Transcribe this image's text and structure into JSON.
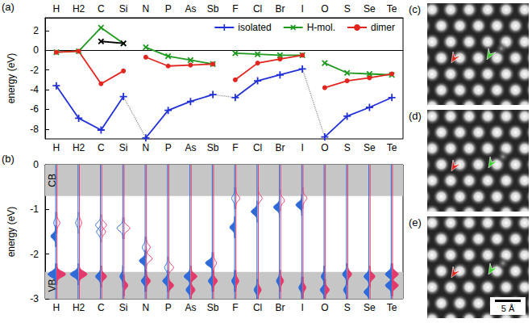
{
  "chart_data": [
    {
      "panel": "(a)",
      "type": "line",
      "ylabel": "energy (eV)",
      "categories": [
        [
          "H",
          "H2",
          "C",
          "Si"
        ],
        [
          "N",
          "P",
          "As",
          "Sb"
        ],
        [
          "F",
          "Cl",
          "Br",
          "I"
        ],
        [
          "O",
          "S",
          "Se",
          "Te"
        ]
      ],
      "ylim": [
        -9,
        3.3
      ],
      "yticks": [
        2,
        0,
        -2,
        -4,
        -6,
        -8
      ],
      "grid": false,
      "legend": "upper right",
      "series": [
        {
          "name": "isolated",
          "color": "#2230d8",
          "marker": "plus",
          "line_style": "dotted_between_groups",
          "values": [
            [
              -3.6,
              -6.9,
              -8.1,
              -4.7
            ],
            [
              -8.9,
              -6.1,
              -5.2,
              -4.5
            ],
            [
              -4.8,
              -3.1,
              -2.5,
              -1.9
            ],
            [
              -8.8,
              -6.7,
              -5.8,
              -4.8
            ]
          ]
        },
        {
          "name": "H-mol.",
          "color": "#1f9a1f",
          "marker": "cross",
          "line_style": "solid",
          "values": [
            [
              -0.2,
              -0.1,
              2.3,
              0.7
            ],
            [
              0.3,
              -0.6,
              -1.0,
              -1.4
            ],
            [
              -0.3,
              -0.4,
              -0.5,
              -0.5
            ],
            [
              -1.3,
              -2.3,
              -2.4,
              -2.5
            ]
          ]
        },
        {
          "name": "dimer",
          "color": "#e2261f",
          "marker": "circle",
          "line_style": "solid",
          "values": [
            [
              -0.2,
              -0.1,
              -3.4,
              -2.1
            ],
            [
              -0.7,
              -1.6,
              -1.5,
              -1.4
            ],
            [
              -3.0,
              -1.3,
              -0.9,
              -0.5
            ],
            [
              -3.8,
              -3.1,
              -2.8,
              -2.4
            ]
          ]
        },
        {
          "color": "#000000",
          "marker": "cross",
          "line_style": "solid",
          "values": [
            [
              null,
              null,
              0.9,
              0.7
            ],
            [
              null,
              null,
              null,
              null
            ],
            [
              null,
              null,
              null,
              null
            ],
            [
              null,
              null,
              null,
              null
            ]
          ]
        }
      ]
    },
    {
      "panel": "(b)",
      "type": "density",
      "ylabel": "energy (eV)",
      "categories": [
        "H",
        "H2",
        "C",
        "Si",
        "N",
        "P",
        "As",
        "Sb",
        "F",
        "Cl",
        "Br",
        "I",
        "O",
        "S",
        "Se",
        "Te"
      ],
      "ylim": [
        -3,
        0
      ],
      "yticks": [
        0,
        -1,
        -2,
        -3
      ],
      "grid": false,
      "bands": [
        {
          "label": "CB",
          "from": -0.7,
          "to": 0
        },
        {
          "label": "VB",
          "from": -3,
          "to": -2.4
        }
      ],
      "series": [
        {
          "color": "#2f6ad8",
          "values": [
            [
              [
                -1.6,
                0.5,
                true
              ],
              [
                -1.3,
                0.2,
                false
              ],
              [
                -2.45,
                0.8,
                true
              ]
            ],
            [
              [
                -1.3,
                0.25,
                false
              ],
              [
                -2.45,
                0.8,
                true
              ]
            ],
            [
              [
                -1.35,
                0.5,
                false
              ],
              [
                -1.5,
                0.4,
                false
              ],
              [
                -2.5,
                0.5,
                true
              ]
            ],
            [
              [
                -1.42,
                0.6,
                false
              ],
              [
                -2.5,
                0.3,
                true
              ]
            ],
            [
              [
                -1.85,
                0.3,
                false
              ],
              [
                -2.15,
                0.6,
                true
              ],
              [
                -2.6,
                0.4,
                true
              ]
            ],
            [
              [
                -2.3,
                0.3,
                false
              ],
              [
                -2.6,
                0.5,
                true
              ]
            ],
            [
              [
                -2.5,
                0.6,
                true
              ],
              [
                -2.8,
                0.4,
                true
              ]
            ],
            [
              [
                -2.2,
                0.7,
                true
              ],
              [
                -2.6,
                0.4,
                true
              ]
            ],
            [
              [
                -1.4,
                0.5,
                true
              ],
              [
                -0.75,
                0.3,
                false
              ],
              [
                -2.6,
                0.3,
                true
              ]
            ],
            [
              [
                -1.05,
                0.6,
                true
              ],
              [
                -2.8,
                0.3,
                true
              ]
            ],
            [
              [
                -0.95,
                0.6,
                true
              ],
              [
                -2.6,
                0.3,
                true
              ]
            ],
            [
              [
                -0.9,
                0.6,
                true
              ],
              [
                -2.75,
                0.3,
                true
              ]
            ],
            [
              [
                -2.5,
                0.3,
                true
              ],
              [
                -2.8,
                0.4,
                true
              ]
            ],
            [
              [
                -2.45,
                0.4,
                true
              ],
              [
                -2.8,
                0.3,
                true
              ]
            ],
            [
              [
                -2.5,
                0.5,
                true
              ],
              [
                -2.85,
                0.5,
                true
              ]
            ],
            [
              [
                -2.45,
                0.6,
                true
              ],
              [
                -2.7,
                0.6,
                true
              ]
            ]
          ]
        },
        {
          "color": "#e33a6c",
          "values": [
            [
              [
                -1.3,
                0.3,
                false
              ],
              [
                -2.45,
                0.9,
                true
              ]
            ],
            [
              [
                -1.3,
                0.25,
                false
              ],
              [
                -2.45,
                0.8,
                true
              ]
            ],
            [
              [
                -1.35,
                0.5,
                false
              ],
              [
                -1.5,
                0.4,
                false
              ],
              [
                -2.5,
                0.5,
                true
              ]
            ],
            [
              [
                -1.42,
                0.6,
                false
              ],
              [
                -2.7,
                0.4,
                true
              ]
            ],
            [
              [
                -1.85,
                0.4,
                false
              ],
              [
                -2.1,
                0.6,
                false
              ],
              [
                -2.6,
                0.4,
                true
              ]
            ],
            [
              [
                -2.3,
                0.5,
                false
              ],
              [
                -2.7,
                0.5,
                true
              ]
            ],
            [
              [
                -2.5,
                0.6,
                true
              ],
              [
                -2.8,
                0.4,
                true
              ]
            ],
            [
              [
                -2.2,
                0.3,
                false
              ],
              [
                -2.6,
                0.4,
                true
              ]
            ],
            [
              [
                -0.75,
                0.4,
                false
              ],
              [
                -2.6,
                0.3,
                true
              ]
            ],
            [
              [
                -0.75,
                0.4,
                false
              ],
              [
                -2.8,
                0.3,
                true
              ]
            ],
            [
              [
                -0.8,
                0.4,
                false
              ],
              [
                -2.6,
                0.3,
                true
              ]
            ],
            [
              [
                -0.75,
                0.4,
                false
              ],
              [
                -2.75,
                0.3,
                true
              ]
            ],
            [
              [
                -2.8,
                0.4,
                true
              ]
            ],
            [
              [
                -2.45,
                0.4,
                true
              ]
            ],
            [
              [
                -2.5,
                0.5,
                true
              ]
            ],
            [
              [
                -2.45,
                0.6,
                true
              ],
              [
                -2.7,
                0.6,
                true
              ]
            ]
          ]
        }
      ]
    }
  ],
  "images": [
    {
      "panel": "(c)"
    },
    {
      "panel": "(d)"
    },
    {
      "panel": "(e)",
      "scale_bar": "5 Å"
    }
  ]
}
